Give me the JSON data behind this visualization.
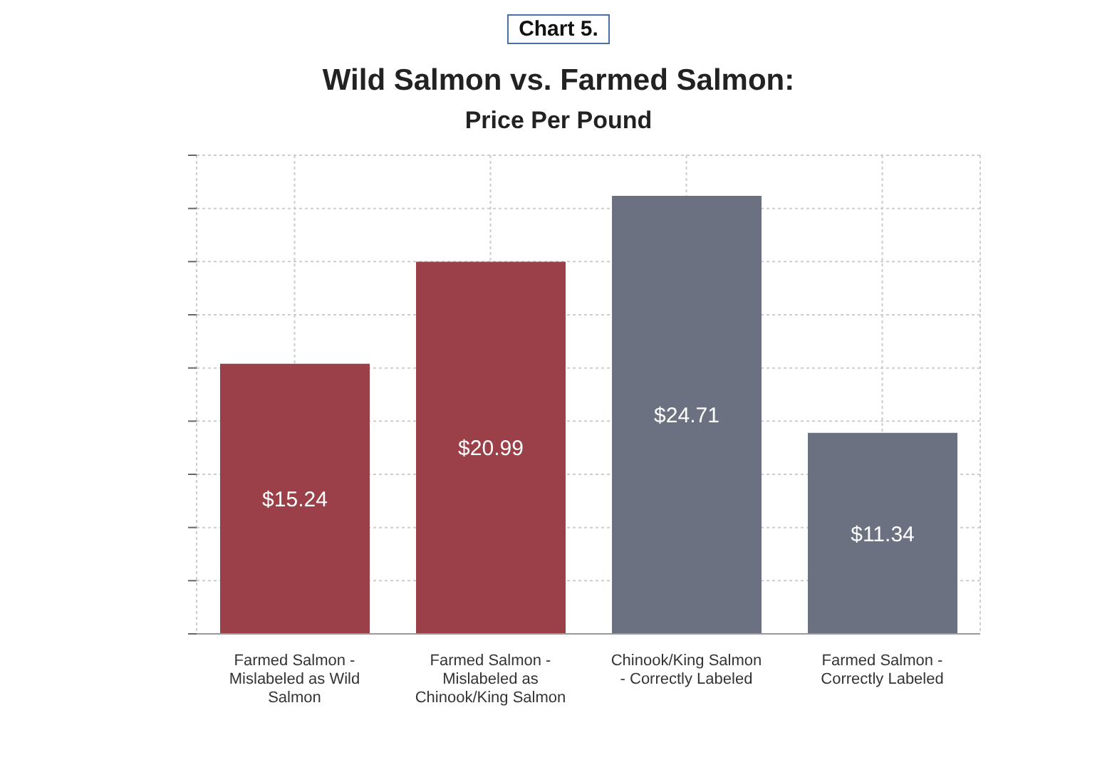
{
  "chart_data": {
    "type": "bar",
    "title": "Wild Salmon vs. Farmed Salmon:",
    "subtitle": "Price Per Pound",
    "annotations": [
      "Chart 5."
    ],
    "categories": [
      "Farmed Salmon - Mislabeled as Wild Salmon",
      "Farmed Salmon - Mislabeled as Chinook/King Salmon",
      "Chinook/King Salmon - Correctly Labeled",
      "Farmed Salmon - Correctly Labeled"
    ],
    "values": [
      15.24,
      20.99,
      24.71,
      11.34
    ],
    "colors": [
      "#9b4048",
      "#9b4048",
      "#6b7180",
      "#6b7180"
    ],
    "value_labels": [
      "$15.24",
      "$20.99",
      "$24.71",
      "$11.34"
    ],
    "ylim": [
      0,
      27
    ],
    "yticks": [
      {
        "value": 0,
        "label": null
      },
      {
        "value": 3,
        "label": null
      },
      {
        "value": 6,
        "label": null
      },
      {
        "value": 9,
        "label": null
      },
      {
        "value": 12,
        "label": null
      },
      {
        "value": 15,
        "label": null
      },
      {
        "value": 18,
        "label": null
      },
      {
        "value": 21,
        "label": null
      },
      {
        "value": 24,
        "label": null
      },
      {
        "value": 27,
        "label": null
      }
    ],
    "tick_labels": "x",
    "grid": true,
    "legend": false
  }
}
